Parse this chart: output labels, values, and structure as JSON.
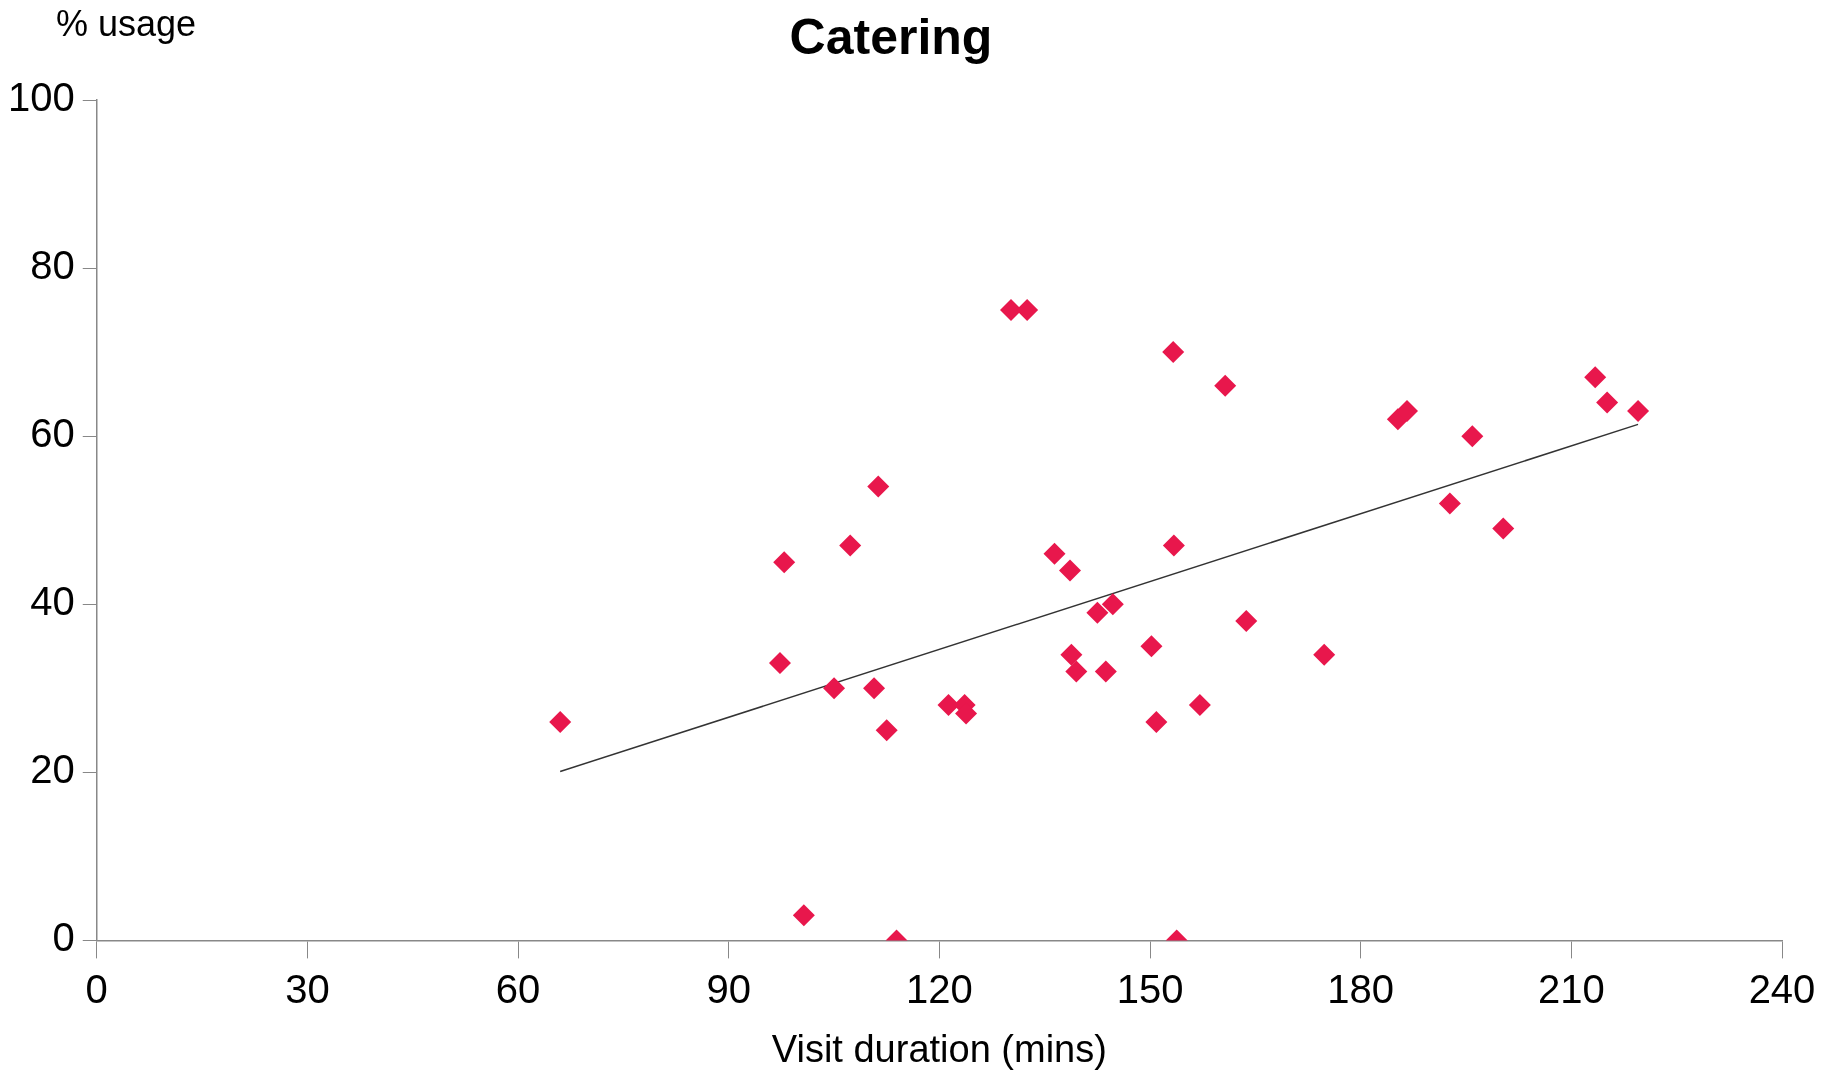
{
  "chart_data": {
    "type": "scatter",
    "title": "Catering",
    "xlabel": "Visit duration (mins)",
    "ylabel": "% usage",
    "xlim": [
      0,
      240
    ],
    "xticks": [
      0,
      30,
      60,
      90,
      120,
      150,
      180,
      210,
      240
    ],
    "ylim": [
      0,
      100
    ],
    "yticks": [
      0,
      20,
      40,
      60,
      80,
      100
    ],
    "grid": false,
    "legend": false,
    "series": [
      {
        "marker": "diamond",
        "color": "#e8174c",
        "x": [
          66,
          97.3,
          97.9,
          100.7,
          105,
          107.3,
          110.7,
          111.3,
          112.5,
          113.9,
          121.3,
          123.6,
          123.8,
          130.2,
          132.5,
          136.4,
          138.6,
          138.8,
          139.5,
          142.5,
          144.7,
          143.7,
          150.2,
          150.9,
          153.3,
          153.4,
          153.8,
          157.1,
          160.7,
          163.7,
          174.8,
          185.3,
          186.6,
          192.7,
          195.9,
          200.3,
          213.4,
          215.1,
          219.5
        ],
        "values": [
          26,
          33,
          45,
          3,
          30,
          47,
          30,
          54,
          25,
          0,
          28,
          28,
          27,
          75,
          75,
          46,
          44,
          34,
          32,
          39,
          40,
          32,
          35,
          26,
          70,
          47,
          0,
          28,
          66,
          38,
          34,
          62,
          63,
          52,
          60,
          49,
          67,
          64,
          63
        ]
      },
      {
        "type": "line",
        "marker": "none",
        "color": "#333333",
        "x": [
          66,
          219.5
        ],
        "values": [
          20.1,
          61.4
        ]
      }
    ]
  }
}
